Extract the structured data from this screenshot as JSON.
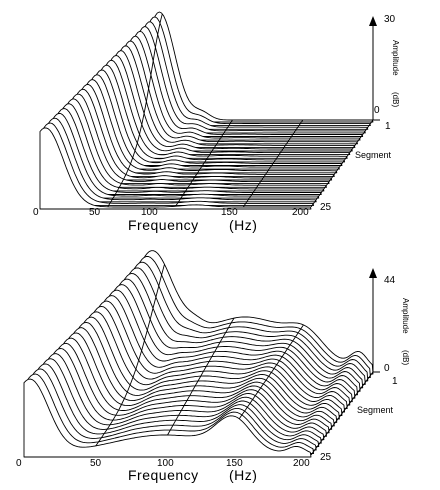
{
  "chart_data": [
    {
      "type": "waterfall",
      "xlabel": "Frequency",
      "xunit": "(Hz)",
      "x_ticks": [
        0,
        50,
        100,
        150,
        200
      ],
      "zlabel": "Amplitude",
      "zunit": "(dB)",
      "z_ticks": [
        0,
        30
      ],
      "zlim": [
        0,
        30
      ],
      "ylabel": "Segment",
      "y_ticks": [
        1,
        25
      ],
      "segments": 25,
      "peaks": [
        {
          "segment": 1,
          "freq_hz": 50,
          "amplitude_db": 30
        },
        {
          "segment": 25,
          "freq_hz": 0,
          "amplitude_db": 22
        }
      ]
    },
    {
      "type": "waterfall",
      "xlabel": "Frequency",
      "xunit": "(Hz)",
      "x_ticks": [
        0,
        50,
        100,
        150,
        200
      ],
      "zlabel": "Amplitude",
      "zunit": "(dB)",
      "z_ticks": [
        0,
        44
      ],
      "zlim": [
        0,
        44
      ],
      "ylabel": "Segment",
      "y_ticks": [
        1,
        25
      ],
      "segments": 25,
      "peaks": [
        {
          "segment": 1,
          "freq_hz": 40,
          "amplitude_db": 44
        },
        {
          "segment": 1,
          "freq_hz": 185,
          "amplitude_db": 6
        },
        {
          "segment": 25,
          "freq_hz": 0,
          "amplitude_db": 30
        }
      ]
    }
  ]
}
